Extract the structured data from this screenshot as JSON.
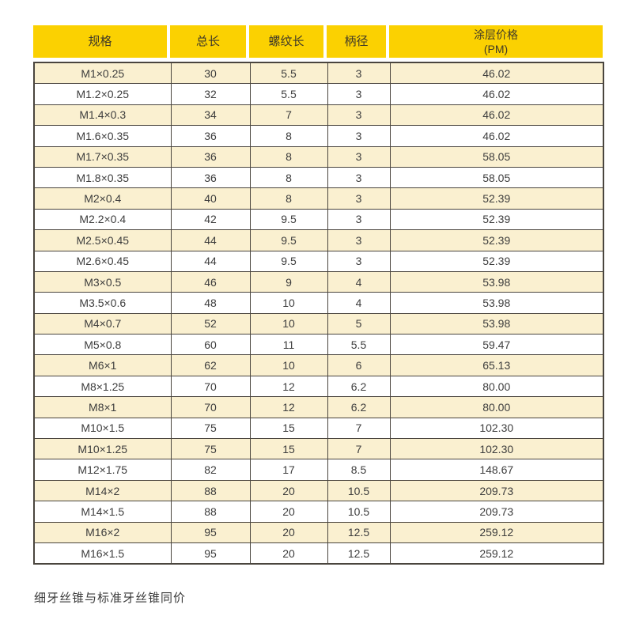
{
  "table": {
    "headers": [
      "规格",
      "总长",
      "螺纹长",
      "柄径",
      "涂层价格\n(PM)"
    ],
    "rows": [
      [
        "M1×0.25",
        "30",
        "5.5",
        "3",
        "46.02"
      ],
      [
        "M1.2×0.25",
        "32",
        "5.5",
        "3",
        "46.02"
      ],
      [
        "M1.4×0.3",
        "34",
        "7",
        "3",
        "46.02"
      ],
      [
        "M1.6×0.35",
        "36",
        "8",
        "3",
        "46.02"
      ],
      [
        "M1.7×0.35",
        "36",
        "8",
        "3",
        "58.05"
      ],
      [
        "M1.8×0.35",
        "36",
        "8",
        "3",
        "58.05"
      ],
      [
        "M2×0.4",
        "40",
        "8",
        "3",
        "52.39"
      ],
      [
        "M2.2×0.4",
        "42",
        "9.5",
        "3",
        "52.39"
      ],
      [
        "M2.5×0.45",
        "44",
        "9.5",
        "3",
        "52.39"
      ],
      [
        "M2.6×0.45",
        "44",
        "9.5",
        "3",
        "52.39"
      ],
      [
        "M3×0.5",
        "46",
        "9",
        "4",
        "53.98"
      ],
      [
        "M3.5×0.6",
        "48",
        "10",
        "4",
        "53.98"
      ],
      [
        "M4×0.7",
        "52",
        "10",
        "5",
        "53.98"
      ],
      [
        "M5×0.8",
        "60",
        "11",
        "5.5",
        "59.47"
      ],
      [
        "M6×1",
        "62",
        "10",
        "6",
        "65.13"
      ],
      [
        "M8×1.25",
        "70",
        "12",
        "6.2",
        "80.00"
      ],
      [
        "M8×1",
        "70",
        "12",
        "6.2",
        "80.00"
      ],
      [
        "M10×1.5",
        "75",
        "15",
        "7",
        "102.30"
      ],
      [
        "M10×1.25",
        "75",
        "15",
        "7",
        "102.30"
      ],
      [
        "M12×1.75",
        "82",
        "17",
        "8.5",
        "148.67"
      ],
      [
        "M14×2",
        "88",
        "20",
        "10.5",
        "209.73"
      ],
      [
        "M14×1.5",
        "88",
        "20",
        "10.5",
        "209.73"
      ],
      [
        "M16×2",
        "95",
        "20",
        "12.5",
        "259.12"
      ],
      [
        "M16×1.5",
        "95",
        "20",
        "12.5",
        "259.12"
      ]
    ]
  },
  "footer": {
    "note": "细牙丝锥与标准牙丝锥同价"
  },
  "colors": {
    "header_bg": "#fbd101",
    "row_alt_bg": "#faf0d0",
    "border": "#4a453e",
    "text": "#3d3d3d"
  }
}
